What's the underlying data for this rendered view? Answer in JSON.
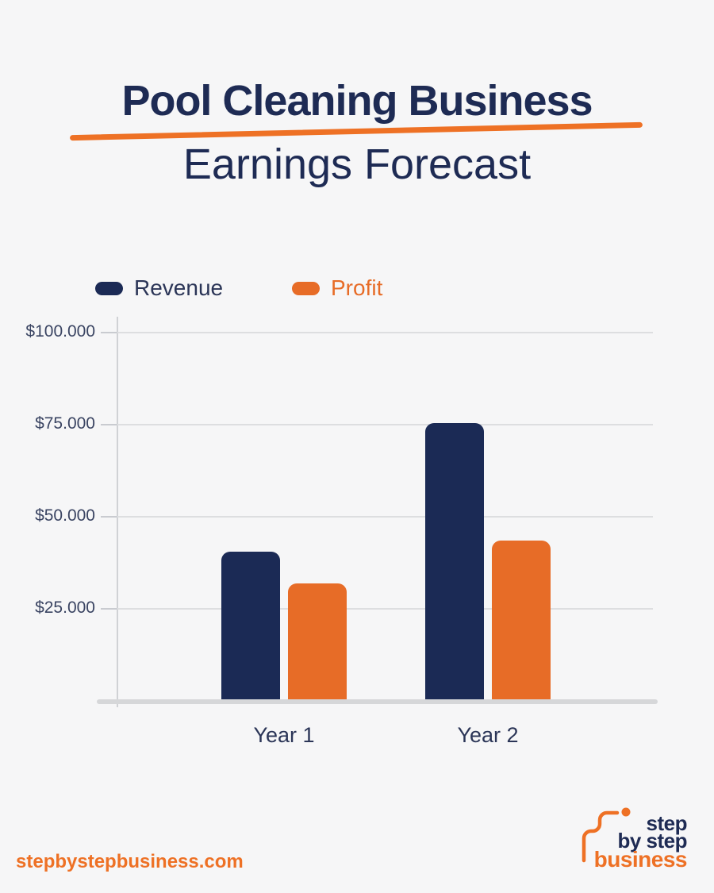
{
  "title": {
    "line1": "Pool Cleaning Business",
    "line2": "Earnings Forecast"
  },
  "legend": {
    "revenue_label": "Revenue",
    "profit_label": "Profit"
  },
  "chart_data": {
    "type": "bar",
    "title": "Pool Cleaning Business Earnings Forecast",
    "categories": [
      "Year 1",
      "Year 2"
    ],
    "series": [
      {
        "name": "Revenue",
        "color": "#1b2a55",
        "values": [
          40000,
          75000
        ]
      },
      {
        "name": "Profit",
        "color": "#e76c27",
        "values": [
          31500,
          43000
        ]
      }
    ],
    "yticks": [
      {
        "label": "$100.000",
        "value": 100000
      },
      {
        "label": "$75.000",
        "value": 75000
      },
      {
        "label": "$50.000",
        "value": 50000
      },
      {
        "label": "$25.000",
        "value": 25000
      }
    ],
    "ylim": [
      0,
      100000
    ],
    "grid": true,
    "legend_position": "top-left",
    "xlabel": "",
    "ylabel": ""
  },
  "footer": {
    "website": "stepbystepbusiness.com"
  },
  "logo": {
    "line1": "step",
    "line2": "by step",
    "line3": "business"
  },
  "colors": {
    "navy": "#1b2a55",
    "orange": "#e76c27",
    "underline_orange": "#ee7125",
    "background": "#f6f6f7",
    "gridline": "#dddee0",
    "baseline": "#d6d7d9"
  }
}
